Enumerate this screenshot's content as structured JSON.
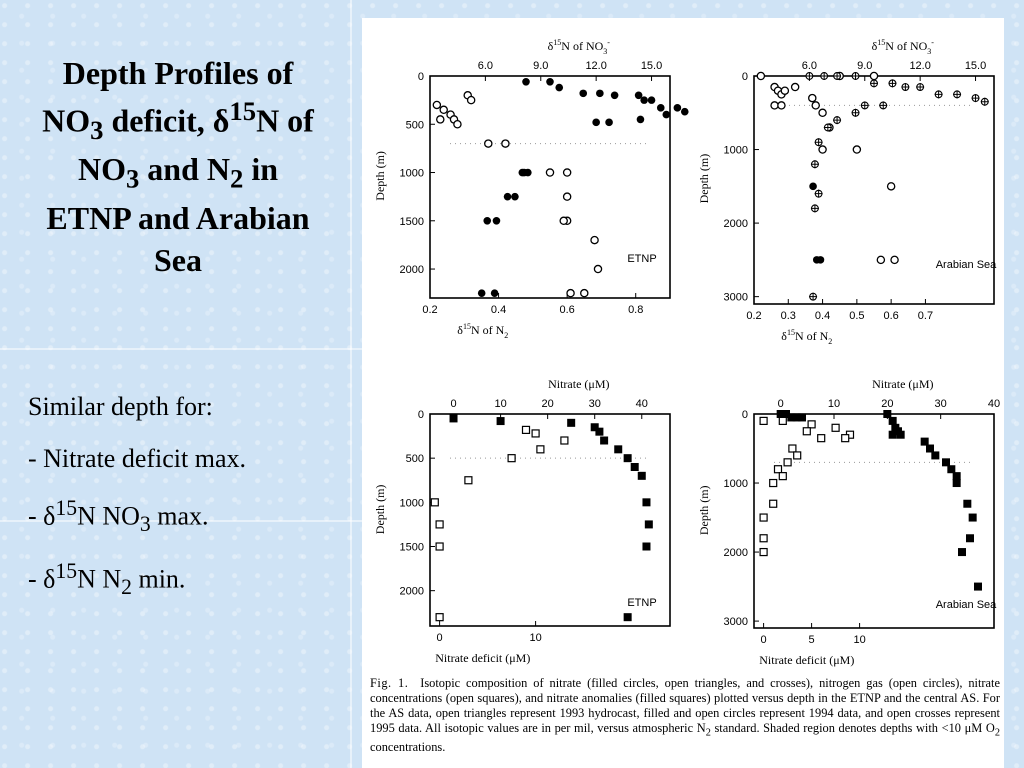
{
  "slide": {
    "title_lines": [
      {
        "pre": "Depth Profiles of",
        "sub": "",
        "sup": "",
        "post": ""
      },
      {
        "pre": "NO",
        "sub": "3",
        "mid": " deficit, δ",
        "sup": "15",
        "post": "N of"
      },
      {
        "pre": "NO",
        "sub": "3",
        "mid": " and N",
        "sub2": "2",
        "post": " in"
      },
      {
        "pre": "ETNP and Arabian",
        "sub": "",
        "sup": "",
        "post": ""
      },
      {
        "pre": "Sea",
        "sub": "",
        "sup": "",
        "post": ""
      }
    ],
    "bullets": [
      {
        "text": "Similar depth for:"
      },
      {
        "text": "- Nitrate deficit max."
      },
      {
        "pre": "- δ",
        "sup": "15",
        "mid": "N NO",
        "sub": "3",
        "post": " max."
      },
      {
        "pre": "- δ",
        "sup": "15",
        "mid": "N N",
        "sub": "2",
        "post": " min."
      }
    ]
  },
  "figure": {
    "caption_label": "Fig. 1.",
    "caption_text": "Isotopic composition of nitrate (filled circles, open triangles, and crosses), nitrogen gas (open circles), nitrate concentrations (open squares), and nitrate anomalies (filled squares) plotted versus depth in the ETNP and the central AS. For the AS data, open triangles represent 1993 hydrocast, filled and open circles represent 1994 data, and open crosses represent 1995 data. All isotopic values are in per mil, versus atmospheric N",
    "caption_sub": "2",
    "caption_text2": " standard. Shaded region denotes depths with <10 ",
    "caption_mu": "μ",
    "caption_text3": "M O",
    "caption_sub2": "2",
    "caption_text4": " concentrations."
  },
  "chart_data": [
    {
      "type": "scatter",
      "panel_label": "ETNP",
      "ylabel": "Depth (m)",
      "bottom_xlabel": "δ15N of N2",
      "top_xlabel": "δ15N of NO3-",
      "ylim": [
        2300,
        0
      ],
      "yticks": [
        0,
        500,
        1000,
        1500,
        2000
      ],
      "bottom_xlim": [
        0.2,
        0.9
      ],
      "bottom_xticks": [
        0.2,
        0.4,
        0.6,
        0.8
      ],
      "top_xlim": [
        3,
        16
      ],
      "top_xticks": [
        6.0,
        9.0,
        12.0,
        15.0
      ],
      "series": [
        {
          "marker": "open-circle",
          "axis": "bottom",
          "points": [
            [
              0.22,
              300
            ],
            [
              0.24,
              350
            ],
            [
              0.26,
              400
            ],
            [
              0.23,
              450
            ],
            [
              0.27,
              450
            ],
            [
              0.28,
              500
            ],
            [
              0.31,
              200
            ],
            [
              0.32,
              250
            ],
            [
              0.37,
              700
            ],
            [
              0.42,
              700
            ],
            [
              0.55,
              1000
            ],
            [
              0.6,
              1000
            ],
            [
              0.6,
              1250
            ],
            [
              0.6,
              1500
            ],
            [
              0.59,
              1500
            ],
            [
              0.68,
              1700
            ],
            [
              0.69,
              2000
            ],
            [
              0.61,
              2250
            ],
            [
              0.65,
              2250
            ]
          ]
        },
        {
          "marker": "filled-circle",
          "axis": "top",
          "points": [
            [
              8.2,
              60
            ],
            [
              9.5,
              60
            ],
            [
              10.0,
              120
            ],
            [
              11.3,
              180
            ],
            [
              12.2,
              180
            ],
            [
              13.0,
              200
            ],
            [
              14.3,
              200
            ],
            [
              14.6,
              250
            ],
            [
              15.0,
              250
            ],
            [
              15.5,
              330
            ],
            [
              16.4,
              330
            ],
            [
              15.8,
              400
            ],
            [
              16.8,
              370
            ],
            [
              12.0,
              480
            ],
            [
              12.7,
              480
            ],
            [
              14.4,
              450
            ],
            [
              8.1,
              1000
            ],
            [
              8.3,
              1000
            ],
            [
              8.0,
              1000
            ],
            [
              7.2,
              1250
            ],
            [
              7.6,
              1250
            ],
            [
              6.1,
              1500
            ],
            [
              6.6,
              1500
            ],
            [
              5.8,
              2250
            ],
            [
              6.5,
              2250
            ]
          ]
        }
      ]
    },
    {
      "type": "scatter",
      "panel_label": "Arabian Sea",
      "ylabel": "Depth (m)",
      "bottom_xlabel": "δ15N of N2",
      "top_xlabel": "δ15N of NO3-",
      "ylim": [
        3100,
        0
      ],
      "yticks": [
        0,
        1000,
        2000,
        3000
      ],
      "bottom_xlim": [
        0.2,
        0.9
      ],
      "bottom_xticks": [
        0.2,
        0.3,
        0.4,
        0.5,
        0.6,
        0.7
      ],
      "top_xlim": [
        3,
        16
      ],
      "top_xticks": [
        6.0,
        9.0,
        12.0,
        15.0
      ],
      "series": [
        {
          "marker": "open-circle",
          "axis": "bottom",
          "points": [
            [
              0.22,
              0
            ],
            [
              0.26,
              150
            ],
            [
              0.27,
              200
            ],
            [
              0.28,
              250
            ],
            [
              0.29,
              200
            ],
            [
              0.32,
              150
            ],
            [
              0.37,
              300
            ],
            [
              0.38,
              400
            ],
            [
              0.4,
              500
            ],
            [
              0.42,
              700
            ],
            [
              0.4,
              1000
            ],
            [
              0.5,
              1000
            ],
            [
              0.57,
              2500
            ],
            [
              0.6,
              1500
            ],
            [
              0.61,
              2500
            ],
            [
              0.55,
              0
            ],
            [
              0.45,
              0
            ],
            [
              0.26,
              400
            ],
            [
              0.28,
              400
            ]
          ]
        },
        {
          "marker": "filled-circle",
          "axis": "top",
          "points": [
            [
              6.2,
              1500
            ],
            [
              6.4,
              2500
            ],
            [
              6.6,
              2500
            ]
          ]
        },
        {
          "marker": "cross",
          "axis": "top",
          "points": [
            [
              6.0,
              0
            ],
            [
              6.8,
              0
            ],
            [
              7.5,
              0
            ],
            [
              8.5,
              0
            ],
            [
              9.5,
              100
            ],
            [
              10.5,
              100
            ],
            [
              11.2,
              150
            ],
            [
              12.0,
              150
            ],
            [
              13.0,
              250
            ],
            [
              14.0,
              250
            ],
            [
              15.0,
              300
            ],
            [
              15.5,
              350
            ],
            [
              9.0,
              400
            ],
            [
              10.0,
              400
            ],
            [
              8.5,
              500
            ],
            [
              7.5,
              600
            ],
            [
              7.0,
              700
            ],
            [
              6.5,
              900
            ],
            [
              6.3,
              1200
            ],
            [
              6.5,
              1600
            ],
            [
              6.3,
              1800
            ],
            [
              6.2,
              3000
            ]
          ]
        }
      ]
    },
    {
      "type": "scatter",
      "panel_label": "ETNP",
      "ylabel": "Depth (m)",
      "bottom_xlabel": "Nitrate deficit (μM)",
      "top_xlabel": "Nitrate (μM)",
      "ylim": [
        2400,
        0
      ],
      "yticks": [
        0,
        500,
        1000,
        1500,
        2000
      ],
      "bottom_xlim": [
        -1,
        24
      ],
      "bottom_xticks": [
        0,
        10
      ],
      "top_xlim": [
        -5,
        46
      ],
      "top_xticks": [
        0,
        10,
        20,
        30,
        40
      ],
      "series": [
        {
          "marker": "open-square",
          "axis": "bottom",
          "points": [
            [
              9,
              180
            ],
            [
              10,
              220
            ],
            [
              13,
              300
            ],
            [
              10.5,
              400
            ],
            [
              7.5,
              500
            ],
            [
              3,
              750
            ],
            [
              -0.5,
              1000
            ],
            [
              0,
              1250
            ],
            [
              0,
              1500
            ],
            [
              0,
              2300
            ]
          ]
        },
        {
          "marker": "filled-square",
          "axis": "top",
          "points": [
            [
              0,
              50
            ],
            [
              10,
              80
            ],
            [
              25,
              100
            ],
            [
              30,
              150
            ],
            [
              31,
              200
            ],
            [
              32,
              300
            ],
            [
              35,
              400
            ],
            [
              37,
              500
            ],
            [
              38.5,
              600
            ],
            [
              40,
              700
            ],
            [
              41,
              1000
            ],
            [
              41.5,
              1250
            ],
            [
              41,
              1500
            ],
            [
              37,
              2300
            ]
          ]
        }
      ]
    },
    {
      "type": "scatter",
      "panel_label": "Arabian Sea",
      "ylabel": "Depth (m)",
      "bottom_xlabel": "Nitrate deficit (μM)",
      "top_xlabel": "Nitrate (μM)",
      "ylim": [
        3100,
        0
      ],
      "yticks": [
        0,
        1000,
        2000,
        3000
      ],
      "bottom_xlim": [
        -1,
        24
      ],
      "bottom_xticks": [
        0,
        5,
        10
      ],
      "top_xlim": [
        -5,
        40
      ],
      "top_xticks": [
        0,
        10,
        20,
        30,
        40
      ],
      "series": [
        {
          "marker": "open-square",
          "axis": "bottom",
          "points": [
            [
              0,
              100
            ],
            [
              2,
              100
            ],
            [
              5,
              150
            ],
            [
              4.5,
              250
            ],
            [
              6,
              350
            ],
            [
              7.5,
              200
            ],
            [
              9,
              300
            ],
            [
              8.5,
              350
            ],
            [
              3,
              500
            ],
            [
              3.5,
              600
            ],
            [
              2.5,
              700
            ],
            [
              1.5,
              800
            ],
            [
              2,
              900
            ],
            [
              1,
              1000
            ],
            [
              1,
              1300
            ],
            [
              0,
              1500
            ],
            [
              0,
              1800
            ],
            [
              0,
              2000
            ]
          ]
        },
        {
          "marker": "filled-square",
          "axis": "top",
          "points": [
            [
              0,
              0
            ],
            [
              1,
              0
            ],
            [
              2,
              50
            ],
            [
              3,
              50
            ],
            [
              4,
              50
            ],
            [
              20,
              0
            ],
            [
              21,
              100
            ],
            [
              21.5,
              200
            ],
            [
              21,
              300
            ],
            [
              22,
              250
            ],
            [
              22.5,
              300
            ],
            [
              27,
              400
            ],
            [
              28,
              500
            ],
            [
              29,
              600
            ],
            [
              31,
              700
            ],
            [
              32,
              800
            ],
            [
              33,
              900
            ],
            [
              33,
              1000
            ],
            [
              35,
              1300
            ],
            [
              36,
              1500
            ],
            [
              35.5,
              1800
            ],
            [
              34,
              2000
            ],
            [
              37,
              2500
            ]
          ]
        }
      ]
    }
  ]
}
